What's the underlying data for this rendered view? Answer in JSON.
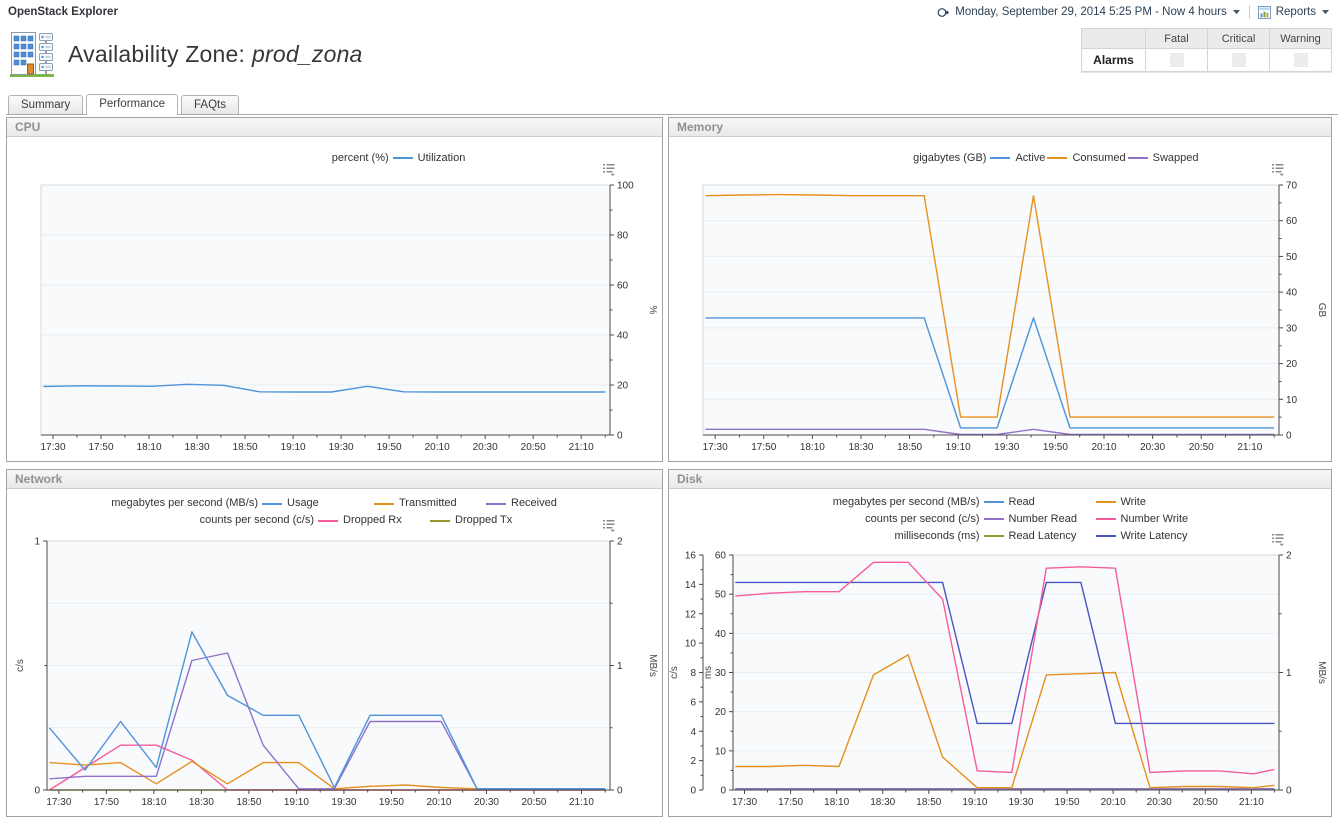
{
  "app": {
    "title": "OpenStack Explorer",
    "time_range": "Monday, September 29, 2014 5:25 PM - Now 4 hours",
    "reports_label": "Reports"
  },
  "header": {
    "title_prefix": "Availability Zone:",
    "zone_name": "prod_zona"
  },
  "alarms": {
    "title": "Alarms",
    "columns": [
      "Fatal",
      "Critical",
      "Warning"
    ],
    "counts": [
      "",
      "",
      ""
    ]
  },
  "tabs": [
    {
      "label": "Summary",
      "active": false
    },
    {
      "label": "Performance",
      "active": true
    },
    {
      "label": "FAQts",
      "active": false
    }
  ],
  "chart_data": [
    {
      "panel": "CPU",
      "type": "line",
      "x_tick_labels": [
        "17:30",
        "17:50",
        "18:10",
        "18:30",
        "18:50",
        "19:10",
        "19:30",
        "19:50",
        "20:10",
        "20:30",
        "20:50",
        "21:10"
      ],
      "x": [
        "17:26",
        "17:41",
        "17:56",
        "18:11",
        "18:26",
        "18:41",
        "18:56",
        "19:11",
        "19:26",
        "19:41",
        "19:56",
        "20:11",
        "20:26",
        "20:41",
        "20:56",
        "21:11",
        "21:20"
      ],
      "axes": {
        "right": {
          "unit": "%",
          "min": 0,
          "max": 100,
          "major": 20,
          "minor": 10
        }
      },
      "grid": {
        "axis": "right",
        "step": "major"
      },
      "legend_rows": [
        {
          "unit": "percent (%)",
          "items": [
            {
              "label": "Utilization",
              "color": "#4f94d9"
            }
          ]
        }
      ],
      "series": [
        {
          "name": "Utilization",
          "axis": "right",
          "color": "#4f94d9",
          "values": [
            19.4,
            19.7,
            19.6,
            19.5,
            20.3,
            19.9,
            17.3,
            17.2,
            17.2,
            19.5,
            17.3,
            17.2,
            17.2,
            17.2,
            17.2,
            17.2,
            17.2
          ]
        }
      ]
    },
    {
      "panel": "Memory",
      "type": "line",
      "x_tick_labels": [
        "17:30",
        "17:50",
        "18:10",
        "18:30",
        "18:50",
        "19:10",
        "19:30",
        "19:50",
        "20:10",
        "20:30",
        "20:50",
        "21:10"
      ],
      "x": [
        "17:26",
        "17:41",
        "17:56",
        "18:11",
        "18:26",
        "18:41",
        "18:56",
        "19:11",
        "19:26",
        "19:41",
        "19:56",
        "20:11",
        "20:26",
        "20:41",
        "20:56",
        "21:11",
        "21:20"
      ],
      "axes": {
        "right": {
          "unit": "GB",
          "min": 0,
          "max": 70,
          "major": 10,
          "minor": 5
        }
      },
      "grid": {
        "axis": "right",
        "step": "major"
      },
      "legend_rows": [
        {
          "unit": "gigabytes (GB)",
          "items": [
            {
              "label": "Active",
              "color": "#4f94d9"
            },
            {
              "label": "Consumed",
              "color": "#e6901e"
            },
            {
              "label": "Swapped",
              "color": "#9271cc"
            }
          ]
        }
      ],
      "series": [
        {
          "name": "Swapped",
          "axis": "right",
          "color": "#9271cc",
          "values": [
            1.6,
            1.6,
            1.6,
            1.6,
            1.6,
            1.6,
            1.6,
            0.15,
            0.15,
            1.6,
            0.15,
            0.15,
            0.15,
            0.15,
            0.15,
            0.15,
            0.15
          ]
        },
        {
          "name": "Active",
          "axis": "right",
          "color": "#4f94d9",
          "values": [
            32.8,
            32.8,
            32.8,
            32.8,
            32.8,
            32.8,
            32.8,
            2,
            2,
            32.8,
            2,
            2,
            2,
            2,
            2,
            2,
            2
          ]
        },
        {
          "name": "Consumed",
          "axis": "right",
          "color": "#e6901e",
          "values": [
            67,
            67.2,
            67.3,
            67.2,
            67,
            67,
            67,
            5,
            5,
            67,
            5,
            5,
            5,
            5,
            5,
            5,
            5
          ]
        }
      ]
    },
    {
      "panel": "Network",
      "type": "line",
      "x_tick_labels": [
        "17:30",
        "17:50",
        "18:10",
        "18:30",
        "18:50",
        "19:10",
        "19:30",
        "19:50",
        "20:10",
        "20:30",
        "20:50",
        "21:10"
      ],
      "x": [
        "17:26",
        "17:41",
        "17:56",
        "18:11",
        "18:26",
        "18:41",
        "18:56",
        "19:11",
        "19:26",
        "19:41",
        "19:56",
        "20:11",
        "20:26",
        "20:41",
        "20:56",
        "21:11",
        "21:20"
      ],
      "axes": {
        "left": {
          "unit": "c/s",
          "min": 0,
          "max": 1,
          "major": 1,
          "minor": 0.5
        },
        "right": {
          "unit": "MB/s",
          "min": 0,
          "max": 2,
          "major": 1,
          "minor": 0.5
        }
      },
      "grid": {
        "axis": "right",
        "step": "minor"
      },
      "legend_rows": [
        {
          "unit": "megabytes per second (MB/s)",
          "items": [
            {
              "label": "Usage",
              "color": "#4f94d9"
            },
            {
              "label": "Transmitted",
              "color": "#e6901e"
            },
            {
              "label": "Received",
              "color": "#9271cc"
            }
          ]
        },
        {
          "unit": "counts per second (c/s)",
          "items": [
            {
              "label": "Dropped Rx",
              "color": "#f55c9c"
            },
            {
              "label": "Dropped Tx",
              "color": "#97992f"
            }
          ]
        }
      ],
      "series": [
        {
          "name": "Dropped Tx",
          "axis": "left",
          "color": "#97992f",
          "values": [
            0,
            0,
            0,
            0,
            0,
            0,
            0,
            0,
            0,
            0,
            0,
            0,
            0,
            0,
            0,
            0,
            0
          ]
        },
        {
          "name": "Dropped Rx",
          "axis": "left",
          "color": "#f55c9c",
          "values": [
            0,
            0.09,
            0.18,
            0.18,
            0.12,
            0,
            0,
            0,
            0,
            0,
            0,
            0,
            0,
            0,
            0,
            0,
            0
          ]
        },
        {
          "name": "Transmitted",
          "axis": "right",
          "color": "#e6901e",
          "values": [
            0.22,
            0.2,
            0.22,
            0.05,
            0.23,
            0.05,
            0.22,
            0.22,
            0.01,
            0.03,
            0.04,
            0.02,
            0.01,
            0.01,
            0.01,
            0.01,
            0.01
          ]
        },
        {
          "name": "Received",
          "axis": "right",
          "color": "#9271cc",
          "values": [
            0.09,
            0.11,
            0.11,
            0.11,
            1.04,
            1.1,
            0.36,
            0.01,
            0.01,
            0.55,
            0.55,
            0.55,
            0.01,
            0.01,
            0.01,
            0.01,
            0.01
          ]
        },
        {
          "name": "Usage",
          "axis": "right",
          "color": "#4f94d9",
          "values": [
            0.5,
            0.16,
            0.55,
            0.18,
            1.27,
            0.76,
            0.6,
            0.6,
            0.02,
            0.6,
            0.6,
            0.6,
            0.01,
            0.01,
            0.01,
            0.01,
            0.01
          ]
        }
      ]
    },
    {
      "panel": "Disk",
      "type": "line",
      "x_tick_labels": [
        "17:30",
        "17:50",
        "18:10",
        "18:30",
        "18:50",
        "19:10",
        "19:30",
        "19:50",
        "20:10",
        "20:30",
        "20:50",
        "21:10"
      ],
      "x": [
        "17:26",
        "17:41",
        "17:56",
        "18:11",
        "18:26",
        "18:41",
        "18:56",
        "19:11",
        "19:26",
        "19:41",
        "19:56",
        "20:11",
        "20:26",
        "20:41",
        "20:56",
        "21:11",
        "21:20"
      ],
      "axes": {
        "left_outer": {
          "unit": "c/s",
          "min": 0,
          "max": 16,
          "major": 2,
          "minor": 1
        },
        "left_inner": {
          "unit": "ms",
          "min": 0,
          "max": 60,
          "major": 10,
          "minor": 5
        },
        "right": {
          "unit": "MB/s",
          "min": 0,
          "max": 2,
          "major": 1,
          "minor": 0.5
        }
      },
      "grid": {
        "axis": "left_inner",
        "step": "major"
      },
      "legend_rows": [
        {
          "unit": "megabytes per second (MB/s)",
          "items": [
            {
              "label": "Read",
              "color": "#4f94d9"
            },
            {
              "label": "Write",
              "color": "#e6901e"
            }
          ]
        },
        {
          "unit": "counts per second (c/s)",
          "items": [
            {
              "label": "Number Read",
              "color": "#9271cc"
            },
            {
              "label": "Number Write",
              "color": "#f55c9c"
            }
          ]
        },
        {
          "unit": "milliseconds (ms)",
          "items": [
            {
              "label": "Read Latency",
              "color": "#97992f"
            },
            {
              "label": "Write Latency",
              "color": "#4a55c4"
            }
          ]
        }
      ],
      "series": [
        {
          "name": "Read",
          "axis": "right",
          "color": "#4f94d9",
          "values": [
            0.01,
            0.01,
            0.01,
            0.01,
            0.01,
            0.01,
            0.01,
            0.01,
            0.01,
            0.01,
            0.01,
            0.01,
            0.01,
            0.01,
            0.01,
            0.01,
            0.01
          ]
        },
        {
          "name": "Read Latency",
          "axis": "left_inner",
          "color": "#97992f",
          "values": [
            0.3,
            0.3,
            0.3,
            0.3,
            0.3,
            0.3,
            0.3,
            0.3,
            0.3,
            0.3,
            0.3,
            0.3,
            0.3,
            0.3,
            0.3,
            0.3,
            0.3
          ]
        },
        {
          "name": "Number Read",
          "axis": "left_outer",
          "color": "#9271cc",
          "values": [
            0.07,
            0.07,
            0.07,
            0.07,
            0.07,
            0.07,
            0.07,
            0.07,
            0.07,
            0.07,
            0.07,
            0.07,
            0.07,
            0.07,
            0.07,
            0.07,
            0.07
          ]
        },
        {
          "name": "Write",
          "axis": "right",
          "color": "#e6901e",
          "values": [
            0.2,
            0.2,
            0.21,
            0.2,
            0.98,
            1.15,
            0.28,
            0.02,
            0.02,
            0.98,
            0.99,
            1.0,
            0.02,
            0.03,
            0.03,
            0.02,
            0.04
          ]
        },
        {
          "name": "Write Latency",
          "axis": "left_inner",
          "color": "#4a55c4",
          "values": [
            53,
            53,
            53,
            53,
            53,
            53,
            53,
            17,
            17,
            53,
            53,
            17,
            17,
            17,
            17,
            17,
            17
          ]
        },
        {
          "name": "Number Write",
          "axis": "left_outer",
          "color": "#f55c9c",
          "values": [
            13.2,
            13.4,
            13.5,
            13.5,
            15.5,
            15.5,
            13.0,
            1.3,
            1.2,
            15.1,
            15.2,
            15.1,
            1.2,
            1.3,
            1.3,
            1.1,
            1.4
          ]
        }
      ]
    }
  ]
}
